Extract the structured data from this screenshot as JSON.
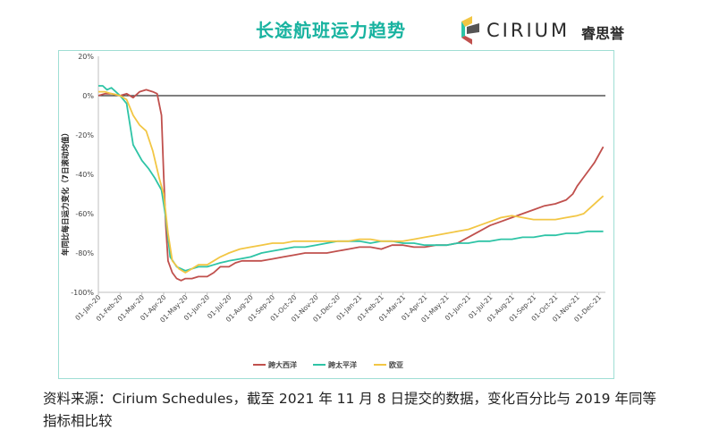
{
  "header": {
    "title": "长途航班运力趋势",
    "logo_word": "CIRIUM",
    "logo_cn": "睿思誉"
  },
  "source_note": "资料来源：Cirium Schedules，截至 2021 年 11 月 8 日提交的数据，变化百分比与 2019 年同等指标相比较",
  "chart_data": {
    "type": "line",
    "title": "长途航班运力趋势",
    "ylabel": "年同比每日运力变化（7日滚动均值）",
    "xlabel": "",
    "ylim": [
      -100,
      20
    ],
    "yticks": [
      20,
      0,
      -20,
      -40,
      -60,
      -80,
      -100
    ],
    "ytick_labels": [
      "20%",
      "0%",
      "-20%",
      "-40%",
      "-60%",
      "-80%",
      "-100%"
    ],
    "xlim": [
      0,
      23.3
    ],
    "x_categories": [
      "01-Jan-20",
      "01-Feb-20",
      "01-Mar-20",
      "01-Apr-20",
      "01-May-20",
      "01-Jun-20",
      "01-Jul-20",
      "01-Aug-20",
      "01-Sep-20",
      "01-Oct-20",
      "01-Nov-20",
      "01-Dec-20",
      "01-Jan-21",
      "01-Feb-21",
      "01-Mar-21",
      "01-Apr-21",
      "01-May-21",
      "01-Jun-21",
      "01-Jul-21",
      "01-Aug-21",
      "01-Sep-21",
      "01-Oct-21",
      "01-Nov-21",
      "01-Dec-21"
    ],
    "grid": false,
    "legend_position": "bottom",
    "colors": {
      "atlantic": "#c0504d",
      "pacific": "#2ec4a6",
      "euro_asia": "#f2c644",
      "zero_line": "#333333",
      "axis": "#bfbfbf"
    },
    "series": [
      {
        "name": "跨大西洋",
        "color": "#c0504d",
        "x": [
          0,
          0.3,
          0.6,
          1.0,
          1.3,
          1.6,
          1.9,
          2.2,
          2.5,
          2.7,
          2.9,
          3.0,
          3.1,
          3.2,
          3.4,
          3.6,
          3.8,
          4.0,
          4.3,
          4.6,
          5.0,
          5.3,
          5.6,
          6.0,
          6.3,
          6.6,
          7.0,
          7.5,
          8.0,
          8.5,
          9.0,
          9.5,
          10.0,
          10.5,
          11.0,
          11.5,
          12.0,
          12.5,
          13.0,
          13.5,
          14.0,
          14.5,
          15.0,
          15.5,
          16.0,
          16.5,
          17.0,
          17.5,
          18.0,
          18.5,
          19.0,
          19.5,
          20.0,
          20.5,
          21.0,
          21.5,
          21.8,
          22.0,
          22.2,
          22.4,
          22.6,
          22.8,
          23.0,
          23.2
        ],
        "y": [
          0,
          1,
          1,
          0,
          1,
          -1,
          2,
          3,
          2,
          1,
          -10,
          -40,
          -66,
          -84,
          -90,
          -93,
          -94,
          -93,
          -93,
          -92,
          -92,
          -90,
          -87,
          -87,
          -85,
          -84,
          -84,
          -84,
          -83,
          -82,
          -81,
          -80,
          -80,
          -80,
          -79,
          -78,
          -77,
          -77,
          -78,
          -76,
          -76,
          -77,
          -77,
          -76,
          -76,
          -75,
          -72,
          -69,
          -66,
          -64,
          -62,
          -60,
          -58,
          -56,
          -55,
          -53,
          -50,
          -46,
          -43,
          -40,
          -37,
          -34,
          -30,
          -26
        ]
      },
      {
        "name": "跨太平洋",
        "color": "#2ec4a6",
        "x": [
          0,
          0.2,
          0.4,
          0.6,
          1.0,
          1.3,
          1.6,
          2.0,
          2.3,
          2.6,
          2.9,
          3.1,
          3.3,
          3.6,
          4.0,
          4.3,
          4.6,
          5.0,
          5.3,
          5.6,
          6.0,
          6.5,
          7.0,
          7.5,
          8.0,
          8.5,
          9.0,
          9.5,
          10.0,
          10.5,
          11.0,
          11.5,
          12.0,
          12.5,
          13.0,
          13.5,
          14.0,
          14.5,
          15.0,
          15.5,
          16.0,
          16.5,
          17.0,
          17.5,
          18.0,
          18.5,
          19.0,
          19.5,
          20.0,
          20.5,
          21.0,
          21.5,
          22.0,
          22.5,
          23.0,
          23.2
        ],
        "y": [
          5,
          5,
          3,
          4,
          0,
          -4,
          -25,
          -33,
          -37,
          -42,
          -48,
          -62,
          -82,
          -87,
          -89,
          -88,
          -87,
          -87,
          -86,
          -85,
          -84,
          -83,
          -82,
          -80,
          -79,
          -78,
          -77,
          -77,
          -76,
          -75,
          -74,
          -74,
          -74,
          -75,
          -74,
          -74,
          -75,
          -75,
          -76,
          -76,
          -76,
          -75,
          -75,
          -74,
          -74,
          -73,
          -73,
          -72,
          -72,
          -71,
          -71,
          -70,
          -70,
          -69,
          -69,
          -69
        ]
      },
      {
        "name": "欧亚",
        "color": "#f2c644",
        "x": [
          0,
          0.3,
          0.6,
          1.0,
          1.3,
          1.6,
          1.9,
          2.2,
          2.5,
          2.8,
          3.0,
          3.2,
          3.4,
          3.7,
          4.0,
          4.3,
          4.6,
          5.0,
          5.3,
          5.6,
          6.0,
          6.5,
          7.0,
          7.5,
          8.0,
          8.5,
          9.0,
          9.5,
          10.0,
          10.5,
          11.0,
          11.5,
          12.0,
          12.5,
          13.0,
          13.5,
          14.0,
          14.5,
          15.0,
          15.5,
          16.0,
          16.5,
          17.0,
          17.5,
          18.0,
          18.5,
          19.0,
          19.5,
          20.0,
          20.5,
          21.0,
          21.5,
          22.0,
          22.3,
          22.6,
          22.9,
          23.2
        ],
        "y": [
          2,
          2,
          1,
          0,
          -2,
          -10,
          -15,
          -18,
          -28,
          -42,
          -50,
          -70,
          -84,
          -88,
          -90,
          -88,
          -86,
          -86,
          -84,
          -82,
          -80,
          -78,
          -77,
          -76,
          -75,
          -75,
          -74,
          -74,
          -74,
          -74,
          -74,
          -74,
          -73,
          -73,
          -74,
          -74,
          -74,
          -73,
          -72,
          -71,
          -70,
          -69,
          -68,
          -66,
          -64,
          -62,
          -61,
          -62,
          -63,
          -63,
          -63,
          -62,
          -61,
          -60,
          -57,
          -54,
          -51
        ]
      }
    ]
  }
}
